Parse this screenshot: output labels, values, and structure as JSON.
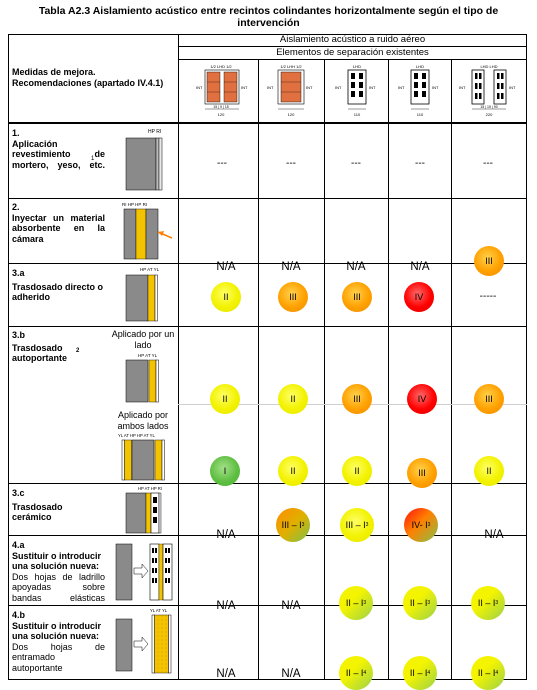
{
  "title_line1": "Tabla A2.3 Aislamiento acústico entre recintos colindantes horizontalmente según el tipo de",
  "title_line2": "intervención",
  "header": {
    "main": "Aislamiento acústico a ruido aéreo",
    "sub": "Elementos de separación existentes",
    "measures": "Medidas de mejora. Recomendaciones (apartado IV.4.1)"
  },
  "header_icons": [
    {
      "top": "1/2 LHD 1/2",
      "left": "INT",
      "right": "INT",
      "dims": "15 | 9 | 15",
      "bottom": "120"
    },
    {
      "top": "1/2 LHH 1/2",
      "left": "INT",
      "right": "INT",
      "dims": "",
      "bottom": "120"
    },
    {
      "top": "LHD",
      "left": "INT",
      "right": "INT",
      "dims": "",
      "bottom": "110"
    },
    {
      "top": "LHD",
      "left": "INT",
      "right": "INT",
      "dims": "",
      "bottom": "110"
    },
    {
      "top": "LHD  LHD",
      "left": "INT",
      "right": "INT",
      "dims": "15 | 15 | 90",
      "bottom": "220"
    }
  ],
  "rows": {
    "r1": {
      "num": "1.",
      "label": "Aplicación revestimiento de mortero, yeso, etc.",
      "sup": "1",
      "icon_labels": "HP  RI"
    },
    "r2": {
      "num": "2.",
      "label": "Inyectar un material absorbente en la cámara",
      "icon_labels": "RI  HP  HP  RI"
    },
    "r3a": {
      "num": "3.a",
      "label": "Trasdosado directo o adherido",
      "icon_labels": "HP   AT  YL"
    },
    "r3b": {
      "num": "3.b",
      "label": "Trasdosado autoportante",
      "sup": "2",
      "sub1": "Aplicado por un lado",
      "sub2": "Aplicado por ambos lados",
      "icon1_labels": "HP  AT YL",
      "icon2_labels": "YL AT   HP  HP AT YL"
    },
    "r3c": {
      "num": "3.c",
      "label": "Trasdosado cerámico",
      "icon_labels": "HP   AT  HP  RI"
    },
    "r4a": {
      "num": "4.a",
      "label": "Sustituir o introducir una solución nueva:",
      "sub": "Dos hojas de ladrillo apoyadas sobre bandas elásticas"
    },
    "r4b": {
      "num": "4.b",
      "label": "Sustituir o introducir una solución nueva:",
      "sub": "Dos hojas de entramado autoportante",
      "icon_labels": "YL  AT  YL"
    }
  },
  "values": {
    "r1": [
      "---",
      "---",
      "---",
      "---",
      "---"
    ],
    "r2": [
      "N/A",
      "N/A",
      "N/A",
      "N/A",
      "III"
    ],
    "r3a": [
      "II",
      "III",
      "III",
      "IV",
      "-----"
    ],
    "r3b1": [
      "II",
      "II",
      "III",
      "IV",
      "III"
    ],
    "r3b2": [
      "I",
      "II",
      "II",
      "III",
      "II"
    ],
    "r3c": [
      "N/A",
      "III – I",
      "III – I",
      "IV- I",
      "N/A"
    ],
    "r3c_sup": [
      "",
      "3",
      "3",
      "3",
      ""
    ],
    "r4a": [
      "N/A",
      "N/A",
      "II – I",
      "II – I",
      "II – I"
    ],
    "r4a_sup": [
      "",
      "",
      "3",
      "3",
      "3"
    ],
    "r4b": [
      "N/A",
      "N/A",
      "II – I",
      "II – I",
      "II – I"
    ],
    "r4b_sup": [
      "",
      "",
      "4",
      "4",
      "4"
    ]
  },
  "colors": {
    "yellow": "#f2f200",
    "orange": "#ffa000",
    "red": "#ff0000",
    "green": "#5fbf42"
  }
}
